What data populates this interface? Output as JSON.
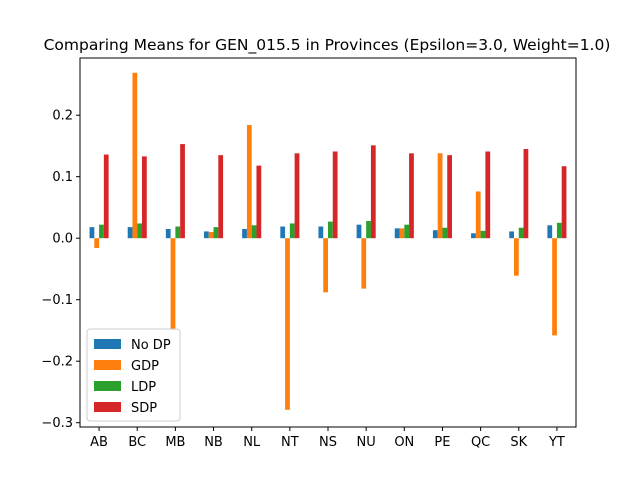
{
  "chart_data": {
    "type": "bar",
    "title": "Comparing Means for GEN_015.5 in Provinces (Epsilon=3.0, Weight=1.0)",
    "xlabel": "",
    "ylabel": "",
    "categories": [
      "AB",
      "BC",
      "MB",
      "NB",
      "NL",
      "NT",
      "NS",
      "NU",
      "ON",
      "PE",
      "QC",
      "SK",
      "YT"
    ],
    "ylim": [
      -0.307,
      0.293
    ],
    "yticks": [
      -0.3,
      -0.2,
      -0.1,
      0.0,
      0.1,
      0.2
    ],
    "ytick_labels": [
      "−0.3",
      "−0.2",
      "−0.1",
      "0.0",
      "0.1",
      "0.2"
    ],
    "grid": false,
    "legend_position": "lower-left",
    "series": [
      {
        "name": "No DP",
        "color": "#1f77b4",
        "values": [
          0.018,
          0.018,
          0.015,
          0.011,
          0.015,
          0.019,
          0.019,
          0.022,
          0.016,
          0.013,
          0.008,
          0.011,
          0.021
        ]
      },
      {
        "name": "GDP",
        "color": "#ff7f0e",
        "values": [
          -0.016,
          0.269,
          -0.149,
          0.01,
          0.184,
          -0.279,
          -0.088,
          -0.082,
          0.016,
          0.138,
          0.076,
          -0.061,
          -0.158
        ]
      },
      {
        "name": "LDP",
        "color": "#2ca02c",
        "values": [
          0.022,
          0.024,
          0.019,
          0.018,
          0.021,
          0.024,
          0.027,
          0.028,
          0.022,
          0.017,
          0.012,
          0.017,
          0.025
        ]
      },
      {
        "name": "SDP",
        "color": "#d62728",
        "values": [
          0.136,
          0.133,
          0.153,
          0.135,
          0.118,
          0.138,
          0.141,
          0.151,
          0.138,
          0.135,
          0.141,
          0.145,
          0.117
        ]
      }
    ]
  }
}
